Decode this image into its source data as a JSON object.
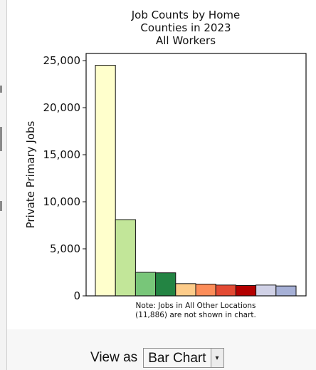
{
  "chart_data": {
    "type": "bar",
    "title_lines": [
      "Job Counts by Home",
      "Counties in 2023",
      "All Workers"
    ],
    "xlabel": "",
    "ylabel": "Private Primary Jobs",
    "ylim": [
      0,
      25000
    ],
    "yticks": [
      0,
      5000,
      10000,
      15000,
      20000,
      25000
    ],
    "ytick_labels": [
      "0",
      "5,000",
      "10,000",
      "15,000",
      "20,000",
      "25,000"
    ],
    "values": [
      24500,
      8100,
      2500,
      2450,
      1300,
      1250,
      1150,
      1100,
      1150,
      1050
    ],
    "colors": [
      "#ffffcc",
      "#c2e699",
      "#78c679",
      "#238443",
      "#fdcc8a",
      "#fc8d59",
      "#e34a33",
      "#b30000",
      "#d0d1e6",
      "#a6b0d6"
    ],
    "note_lines": [
      "Note: Jobs in All Other Locations",
      "(11,886) are not shown in chart."
    ],
    "grid": false
  },
  "controls": {
    "view_as_label": "View as",
    "view_as_value": "Bar Chart",
    "arrow_icon": "▾"
  }
}
